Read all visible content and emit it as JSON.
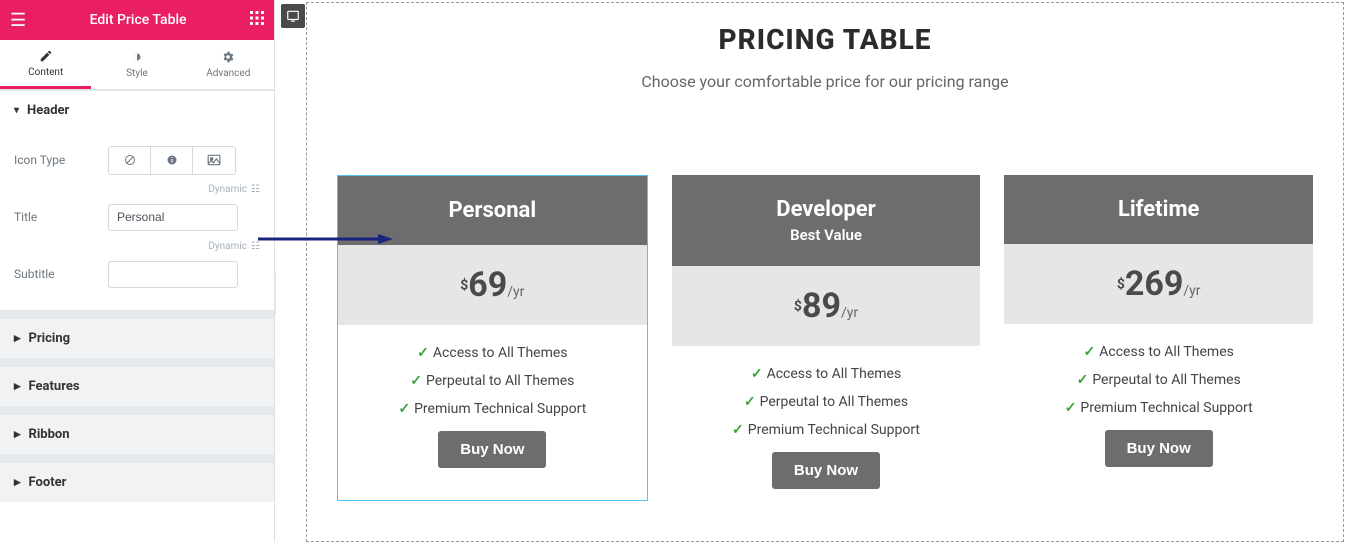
{
  "panel": {
    "title": "Edit Price Table",
    "tabs": {
      "content": "Content",
      "style": "Style",
      "advanced": "Advanced"
    },
    "header_section": "Header",
    "icon_type_label": "Icon Type",
    "dynamic": "Dynamic",
    "title_label": "Title",
    "title_value": "Personal",
    "subtitle_label": "Subtitle",
    "subtitle_value": "",
    "sections": [
      "Pricing",
      "Features",
      "Ribbon",
      "Footer"
    ]
  },
  "preview": {
    "page_title": "PRICING TABLE",
    "page_sub": "Choose your comfortable price for our pricing range",
    "cards": [
      {
        "title": "Personal",
        "subtitle": "",
        "currency": "$",
        "amount": "69",
        "period": "/yr",
        "features": [
          "Access to All Themes",
          "Perpeutal to All Themes",
          "Premium Technical Support"
        ],
        "button": "Buy Now",
        "selected": true,
        "head_bg": "#6d6d6d",
        "price_bg": "#e6e6e6"
      },
      {
        "title": "Developer",
        "subtitle": "Best Value",
        "currency": "$",
        "amount": "89",
        "period": "/yr",
        "features": [
          "Access to All Themes",
          "Perpeutal to All Themes",
          "Premium Technical Support"
        ],
        "button": "Buy Now",
        "selected": false,
        "head_bg": "#6d6d6d",
        "price_bg": "#e6e6e6"
      },
      {
        "title": "Lifetime",
        "subtitle": "",
        "currency": "$",
        "amount": "269",
        "period": "/yr",
        "features": [
          "Access to All Themes",
          "Perpeutal to All Themes",
          "Premium Technical Support"
        ],
        "button": "Buy Now",
        "selected": false,
        "head_bg": "#6d6d6d",
        "price_bg": "#e6e6e6"
      }
    ]
  },
  "colors": {
    "brand": "#e91e63",
    "arrow": "#1a237e",
    "check": "#3aa33a",
    "selected_border": "#4fc3f7"
  }
}
